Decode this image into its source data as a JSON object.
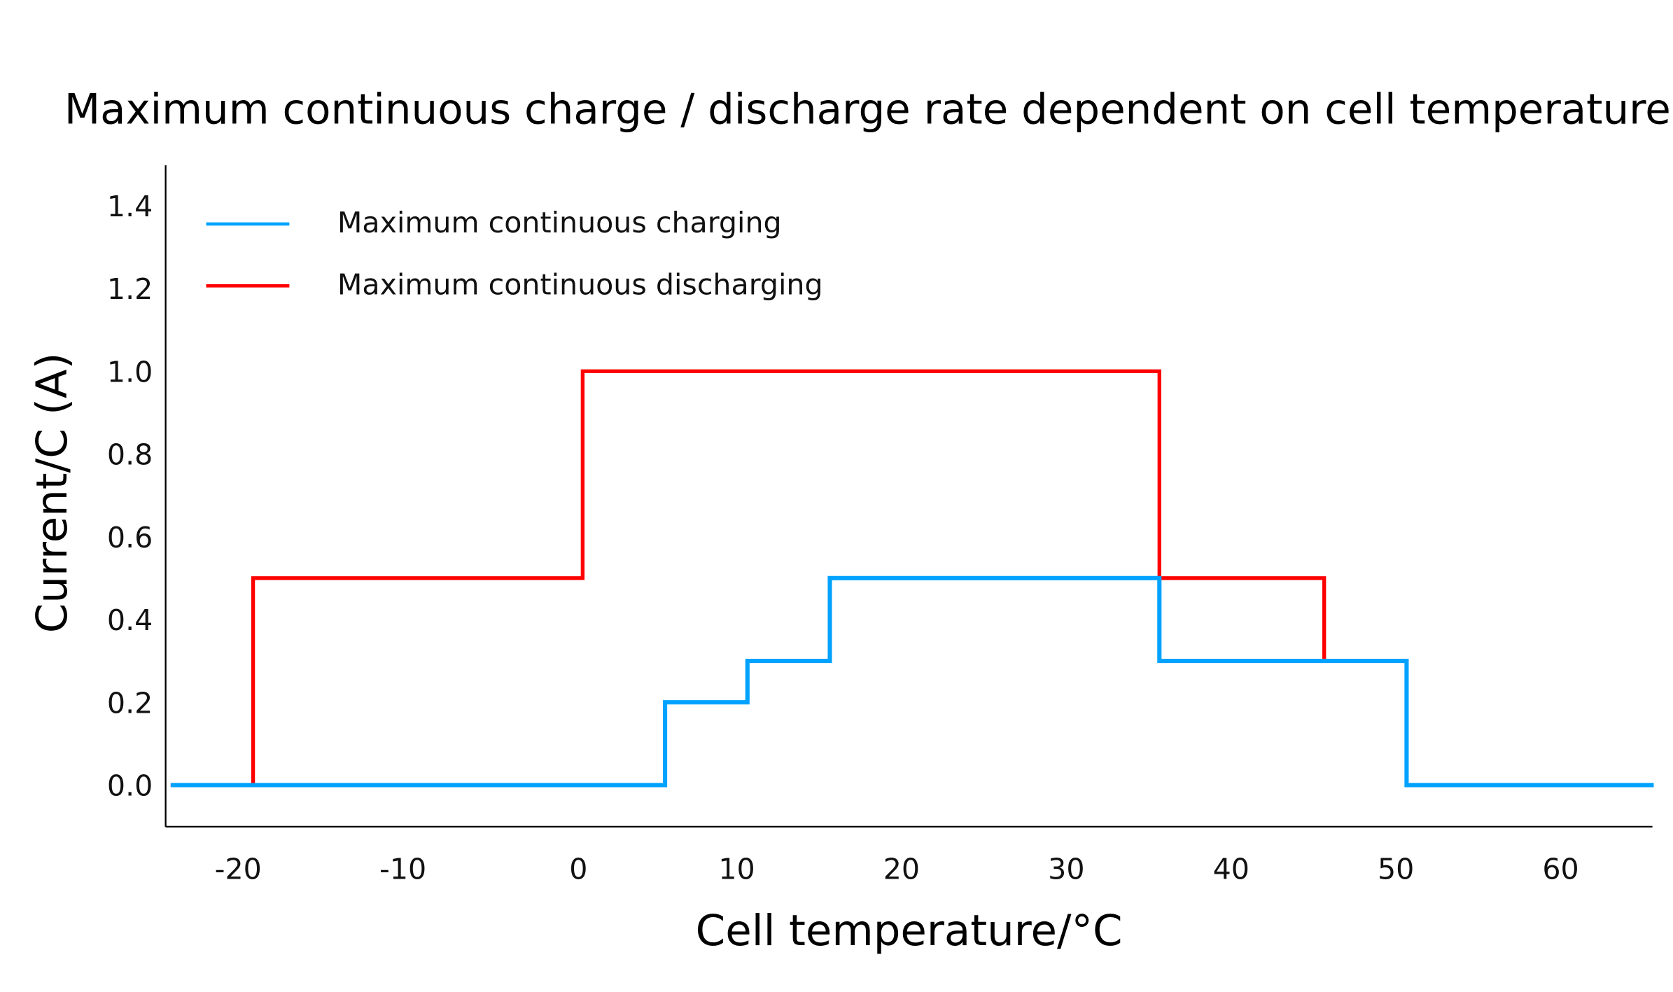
{
  "chart_data": {
    "type": "line",
    "step": true,
    "title": "Maximum continuous charge / discharge rate dependent on cell temperature",
    "xlabel": "Cell temperature/°C",
    "ylabel": "Current/C (A)",
    "xlim": [
      -25,
      65
    ],
    "ylim": [
      -0.1,
      1.5
    ],
    "xticks": [
      -20,
      -10,
      0,
      10,
      20,
      30,
      40,
      50,
      60
    ],
    "xtick_labels": [
      "-20",
      "-10",
      "0",
      "10",
      "20",
      "30",
      "40",
      "50",
      "60"
    ],
    "yticks": [
      0.0,
      0.2,
      0.4,
      0.6,
      0.8,
      1.0,
      1.2,
      1.4
    ],
    "ytick_labels": [
      "0.0",
      "0.2",
      "0.4",
      "0.6",
      "0.8",
      "1.0",
      "1.2",
      "1.4"
    ],
    "grid": false,
    "legend_position": "top-left",
    "series": [
      {
        "name": "Maximum continuous charging",
        "color": "#00a2ff",
        "points": [
          [
            -25,
            0
          ],
          [
            5,
            0
          ],
          [
            5,
            0.2
          ],
          [
            10,
            0.2
          ],
          [
            10,
            0.3
          ],
          [
            15,
            0.3
          ],
          [
            15,
            0.5
          ],
          [
            35,
            0.5
          ],
          [
            35,
            0.3
          ],
          [
            50,
            0.3
          ],
          [
            50,
            0
          ],
          [
            65,
            0
          ]
        ]
      },
      {
        "name": "Maximum continuous discharging",
        "color": "#ff0000",
        "points": [
          [
            -25,
            0
          ],
          [
            -20,
            0
          ],
          [
            -20,
            0.5
          ],
          [
            0,
            0.5
          ],
          [
            0,
            1.0
          ],
          [
            35,
            1.0
          ],
          [
            35,
            0.5
          ],
          [
            45,
            0.5
          ],
          [
            45,
            0.3
          ]
        ]
      }
    ]
  }
}
